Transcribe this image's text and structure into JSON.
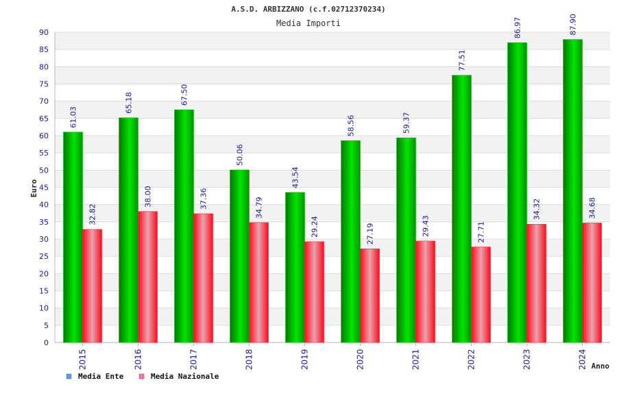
{
  "chart_data": {
    "type": "bar",
    "title": "A.S.D. ARBIZZANO (c.f.02712370234)",
    "subtitle": "Media Importi",
    "xlabel": "Anno",
    "ylabel": "Euro",
    "ylim": [
      0,
      90
    ],
    "ytick_step": 5,
    "grid": true,
    "legend_position": "bottom-left",
    "categories": [
      "2015",
      "2016",
      "2017",
      "2018",
      "2019",
      "2020",
      "2021",
      "2022",
      "2023",
      "2024"
    ],
    "series": [
      {
        "name": "Media Ente",
        "values": [
          61.03,
          65.18,
          67.5,
          50.06,
          43.54,
          58.56,
          59.37,
          77.51,
          86.97,
          87.9
        ],
        "labels": [
          "61.03",
          "65.18",
          "67.50",
          "50.06",
          "43.54",
          "58.56",
          "59.37",
          "77.51",
          "86.97",
          "87.90"
        ],
        "color": "#00b400",
        "legend_color": "#5aa0e6"
      },
      {
        "name": "Media Nazionale",
        "values": [
          32.82,
          38.0,
          37.36,
          34.79,
          29.24,
          27.19,
          29.43,
          27.71,
          34.32,
          34.68
        ],
        "labels": [
          "32.82",
          "38.00",
          "37.36",
          "34.79",
          "29.24",
          "27.19",
          "29.43",
          "27.71",
          "34.32",
          "34.68"
        ],
        "color": "#f0142d",
        "legend_color": "#e67ab4"
      }
    ]
  }
}
